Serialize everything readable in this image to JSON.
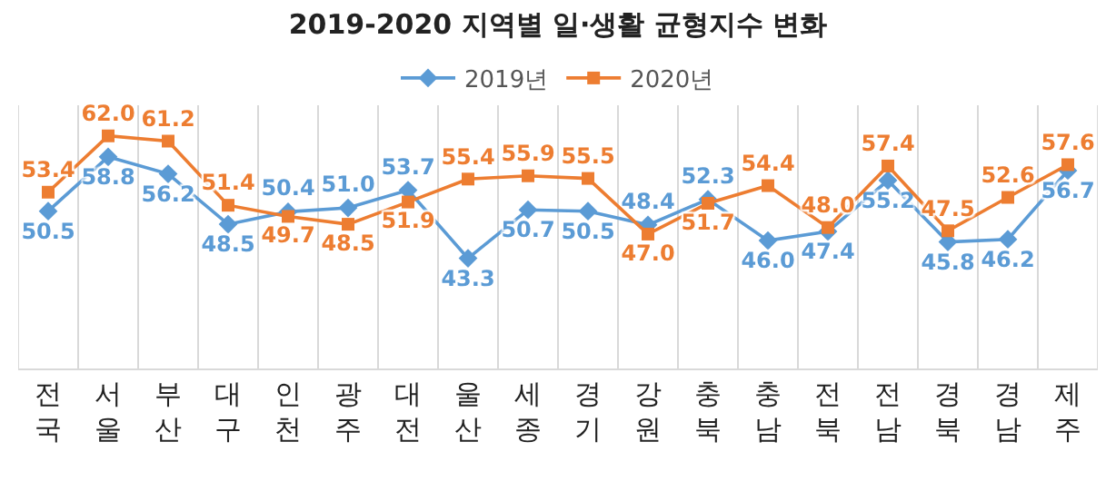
{
  "chart_data": {
    "type": "line",
    "title": "2019-2020 지역별 일·생활 균형지수 변화",
    "categories": [
      "전국",
      "서울",
      "부산",
      "대구",
      "인천",
      "광주",
      "대전",
      "울산",
      "세종",
      "경기",
      "강원",
      "충북",
      "충남",
      "전북",
      "전남",
      "경북",
      "경남",
      "제주"
    ],
    "series": [
      {
        "name": "2019년",
        "color": "#5b9bd5",
        "marker": "diamond",
        "values": [
          50.5,
          58.8,
          56.2,
          48.5,
          50.4,
          51.0,
          53.7,
          43.3,
          50.7,
          50.5,
          48.4,
          52.3,
          46.0,
          47.4,
          55.2,
          45.8,
          46.2,
          56.7
        ],
        "value_labels": [
          "50.5",
          "58.8",
          "56.2",
          "48.5",
          "50.4",
          "51.0",
          "53.7",
          "43.3",
          "50.7",
          "50.5",
          "48.4",
          "52.3",
          "46.0",
          "47.4",
          "55.2",
          "45.8",
          "46.2",
          "56.7"
        ]
      },
      {
        "name": "2020년",
        "color": "#ed7d31",
        "marker": "square",
        "values": [
          53.4,
          62.0,
          61.2,
          51.4,
          49.7,
          48.5,
          51.9,
          55.4,
          55.9,
          55.5,
          47.0,
          51.7,
          54.4,
          48.0,
          57.4,
          47.5,
          52.6,
          57.6
        ],
        "value_labels": [
          "53.4",
          "62.0",
          "61.2",
          "51.4",
          "49.7",
          "48.5",
          "51.9",
          "55.4",
          "55.9",
          "55.5",
          "47.0",
          "51.7",
          "54.4",
          "48.0",
          "57.4",
          "47.5",
          "52.6",
          "57.6"
        ]
      }
    ],
    "grid": "x",
    "legend": "top",
    "line_style": "solid"
  }
}
